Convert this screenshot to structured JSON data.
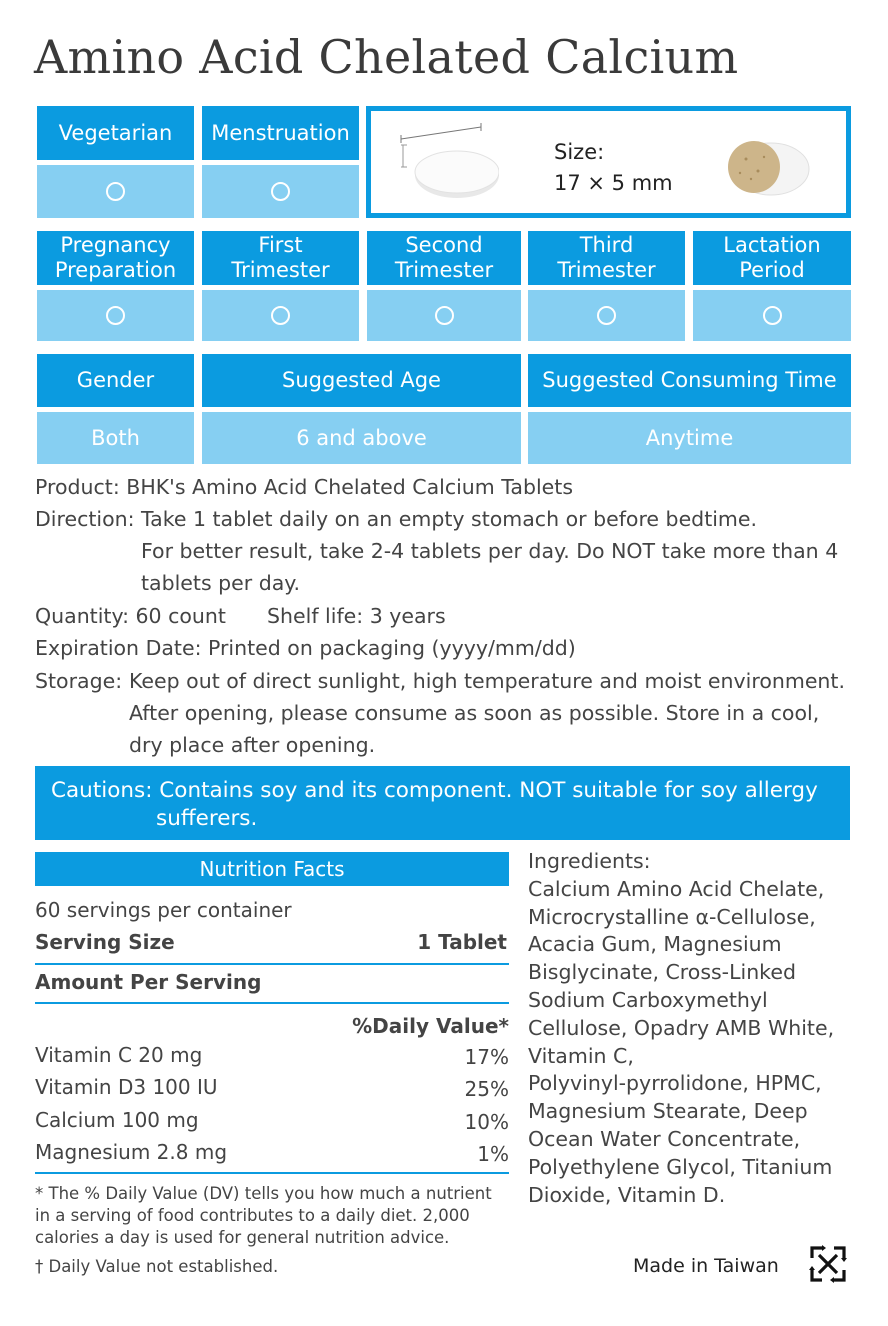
{
  "title": "Amino Acid Chelated Calcium",
  "row1": {
    "headers": [
      "Vegetarian",
      "Menstruation"
    ],
    "size_label": "Size:",
    "size_value": "17 × 5 mm"
  },
  "row2": {
    "headers": [
      {
        "line1": "Pregnancy",
        "line2": "Preparation"
      },
      {
        "line1": "First",
        "line2": "Trimester"
      },
      {
        "line1": "Second",
        "line2": "Trimester"
      },
      {
        "line1": "Third",
        "line2": "Trimester"
      },
      {
        "line1": "Lactation",
        "line2": "Period"
      }
    ]
  },
  "row3": {
    "headers": [
      "Gender",
      "Suggested Age",
      "Suggested Consuming Time"
    ],
    "values": [
      "Both",
      "6 and above",
      "Anytime"
    ]
  },
  "info": {
    "product": "Product: BHK's Amino Acid Chelated Calcium Tablets",
    "direction_label": "Direction:",
    "direction_1": "Take 1 tablet daily on an empty stomach or before bedtime.",
    "direction_2": "For better result, take 2-4 tablets per day. Do NOT take more than 4",
    "direction_3": "tablets per day.",
    "quantity": "Quantity: 60 count",
    "shelf_life": "Shelf life: 3 years",
    "expiration": "Expiration Date: Printed on packaging (yyyy/mm/dd)",
    "storage_label": "Storage:",
    "storage_1": "Keep out of direct sunlight, high temperature and moist environment.",
    "storage_2": "After opening, please consume as soon as possible. Store in a cool,",
    "storage_3": "dry place after opening."
  },
  "caution": {
    "line1": "Cautions: Contains soy and its component. NOT suitable for soy allergy",
    "line2": "sufferers."
  },
  "nutrition": {
    "title": "Nutrition Facts",
    "servings": "60 servings per container",
    "serving_size_label": "Serving Size",
    "serving_size_value": "1 Tablet",
    "amount_label": "Amount Per Serving",
    "dv_header": "%Daily Value*",
    "rows": [
      {
        "name": "Vitamin C 20 mg",
        "dv": "17%"
      },
      {
        "name": "Vitamin D3 100 IU",
        "dv": "25%"
      },
      {
        "name": "Calcium 100 mg",
        "dv": "10%"
      },
      {
        "name": "Magnesium 2.8 mg",
        "dv": "1%"
      }
    ],
    "footnote_1": "* The % Daily Value (DV) tells you how much a nutrient",
    "footnote_2": "in a serving of food contributes to a daily diet. 2,000",
    "footnote_3": "calories a day is used for general nutrition advice.",
    "dagger_note": "† Daily Value not established."
  },
  "ingredients": {
    "lines": [
      "Ingredients:",
      "Calcium Amino Acid Chelate,",
      "Microcrystalline α-Cellulose,",
      "Acacia Gum, Magnesium",
      "Bisglycinate, Cross-Linked",
      "Sodium Carboxymethyl",
      "Cellulose, Opadry AMB White,",
      "Vitamin C,",
      "Polyvinyl-pyrrolidone, HPMC,",
      "Magnesium Stearate, Deep",
      "Ocean Water Concentrate,",
      "Polyethylene Glycol, Titanium",
      "Dioxide, Vitamin D."
    ]
  },
  "footer": {
    "made_in": "Made in Taiwan"
  },
  "colors": {
    "header_blue": "#0b9be0",
    "cell_light_blue": "#86cff2"
  },
  "icons": [
    "circle-mark-icon",
    "tablet-image",
    "tablet-cross-section-image",
    "recycle-icon"
  ]
}
